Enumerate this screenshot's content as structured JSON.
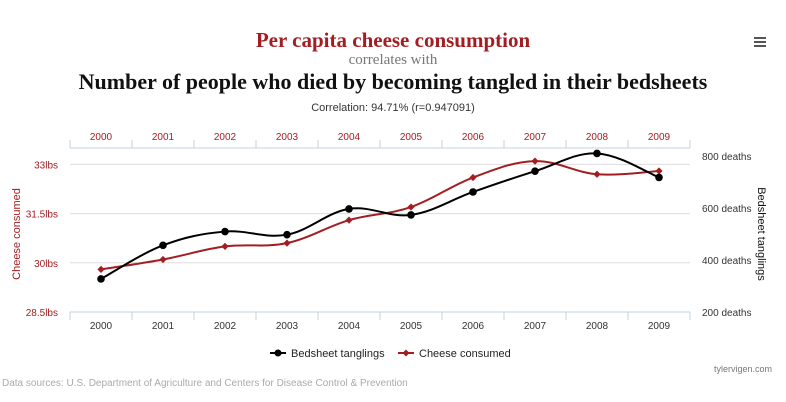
{
  "header": {
    "title_top": "Per capita cheese consumption",
    "connector": "correlates with",
    "title_bottom": "Number of people who died by becoming tangled in their bedsheets",
    "correlation": "Correlation: 94.71% (r=0.947091)"
  },
  "footer": {
    "source": "Data sources: U.S. Department of Agriculture and Centers for Disease Control & Prevention",
    "credit": "tylervigen.com"
  },
  "icons": {
    "menu": "hamburger-menu-icon"
  },
  "colors": {
    "red": "#a31e22",
    "black": "#000000",
    "grid": "#dddddd",
    "axis": "#c0d0e0"
  },
  "chart_data": {
    "type": "line",
    "x": [
      2000,
      2001,
      2002,
      2003,
      2004,
      2005,
      2006,
      2007,
      2008,
      2009
    ],
    "x_tick_labels": [
      "2000",
      "2001",
      "2002",
      "2003",
      "2004",
      "2005",
      "2006",
      "2007",
      "2008",
      "2009"
    ],
    "y_left": {
      "label": "Cheese consumed",
      "range": [
        28.5,
        33.5
      ],
      "ticks": [
        28.5,
        30,
        31.5,
        33
      ],
      "tick_labels": [
        "28.5lbs",
        "30lbs",
        "31.5lbs",
        "33lbs"
      ]
    },
    "y_right": {
      "label": "Bedsheet tanglings",
      "range": [
        200,
        830
      ],
      "ticks": [
        200,
        400,
        600,
        800
      ],
      "tick_labels": [
        "200 deaths",
        "400 deaths",
        "600 deaths",
        "800 deaths"
      ]
    },
    "series": [
      {
        "name": "Bedsheet tanglings",
        "axis": "right",
        "color": "#000000",
        "marker": "circle",
        "values": [
          327,
          456,
          509,
          497,
          596,
          573,
          661,
          741,
          809,
          717
        ]
      },
      {
        "name": "Cheese consumed",
        "axis": "left",
        "color": "#a31e22",
        "marker": "diamond",
        "values": [
          29.8,
          30.1,
          30.5,
          30.6,
          31.3,
          31.7,
          32.6,
          33.1,
          32.7,
          32.8
        ]
      }
    ],
    "legend_position": "bottom-center",
    "grid": true
  }
}
